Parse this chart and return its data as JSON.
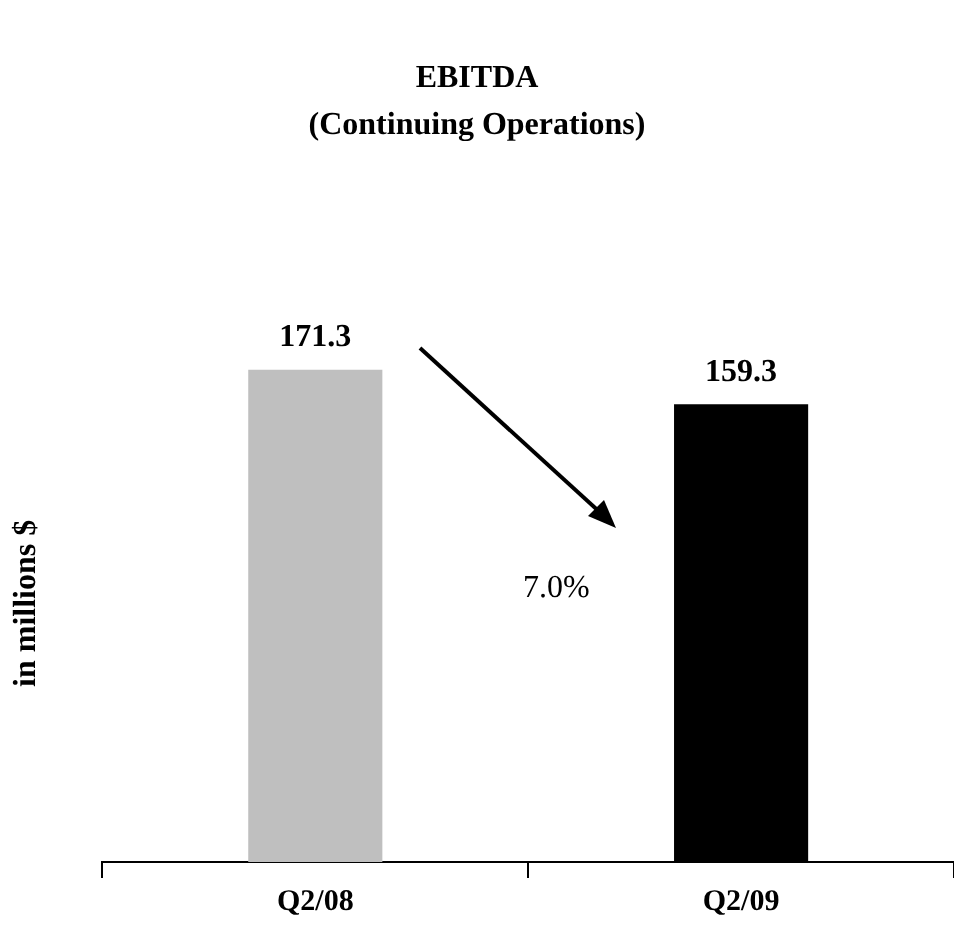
{
  "chart_data": {
    "type": "bar",
    "title": "EBITDA",
    "subtitle": "(Continuing Operations)",
    "ylabel": "in millions $",
    "categories": [
      "Q2/08",
      "Q2/09"
    ],
    "values": [
      171.3,
      159.3
    ],
    "colors": [
      "#bfbfbf",
      "#000000"
    ],
    "data_labels": true,
    "tick_labels": "x",
    "annotations": [
      "7.0%"
    ]
  }
}
